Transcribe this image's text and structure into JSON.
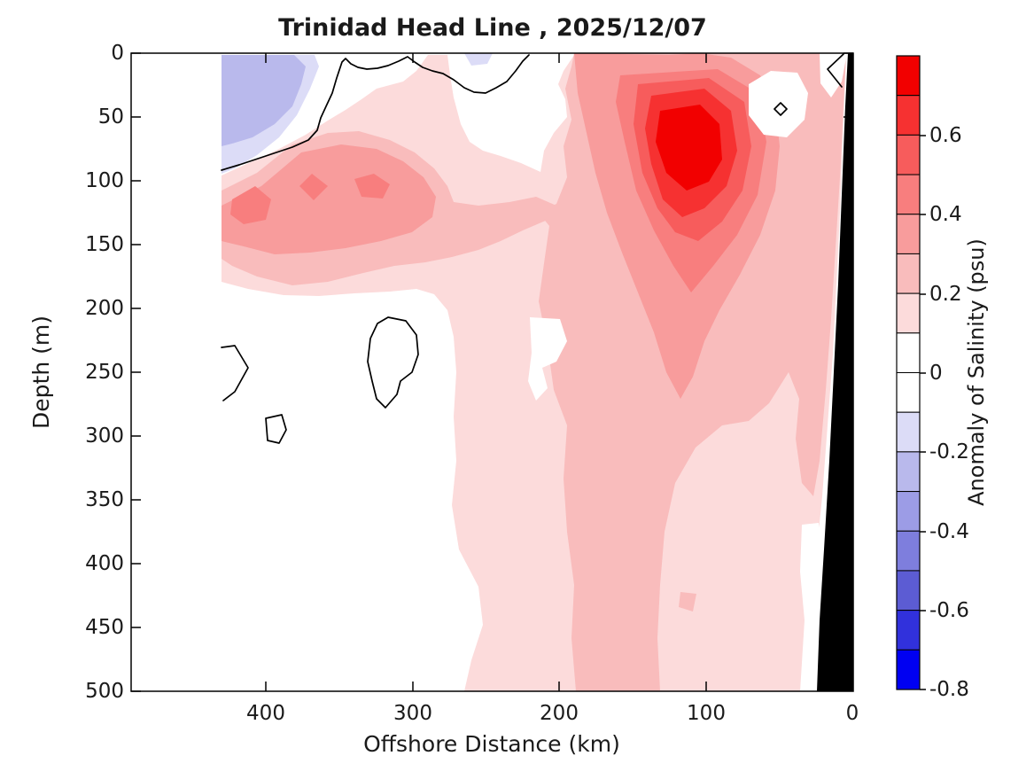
{
  "figure": {
    "title": "Trinidad Head Line , 2025/12/07",
    "xlabel": "Offshore Distance (km)",
    "ylabel": "Depth (m)",
    "colorbar_label": "Anomaly of Salinity (psu)"
  },
  "chart_data": {
    "type": "filled-contour-section",
    "title": "Trinidad Head Line , 2025/12/07",
    "xlabel": "Offshore Distance (km)",
    "ylabel": "Depth (m)",
    "x_axis": {
      "ticks": [
        "400",
        "300",
        "200",
        "100",
        "0"
      ],
      "tick_values_km": [
        400,
        300,
        200,
        100,
        0
      ],
      "reversed": true,
      "range_km": [
        0,
        490
      ],
      "data_extent_km": [
        0,
        430
      ]
    },
    "y_axis": {
      "ticks": [
        "0",
        "50",
        "100",
        "150",
        "200",
        "250",
        "300",
        "350",
        "400",
        "450",
        "500"
      ],
      "tick_values_m": [
        0,
        50,
        100,
        150,
        200,
        250,
        300,
        350,
        400,
        450,
        500
      ],
      "reversed": true,
      "range_m": [
        0,
        500
      ]
    },
    "colorbar": {
      "label": "Anomaly of Salinity (psu)",
      "min_psu": -0.8,
      "max_psu": 0.8,
      "segment_step_psu": 0.1,
      "tick_labels": [
        "0.6",
        "0.4",
        "0.2",
        "0",
        "-0.2",
        "-0.4",
        "-0.6",
        "-0.8"
      ],
      "tick_values": [
        0.6,
        0.4,
        0.2,
        0,
        -0.2,
        -0.4,
        -0.6,
        -0.8
      ],
      "segment_colors_top_to_bottom": [
        "#f20000",
        "#f63131",
        "#f75c5c",
        "#f87e7e",
        "#f89c9c",
        "#f9bcbc",
        "#fcdbdb",
        "#ffffff",
        "#ffffff",
        "#dcdcf7",
        "#b9b9ec",
        "#9c9ce6",
        "#7e7edd",
        "#5c5cd3",
        "#3131dc",
        "#0000f2"
      ]
    },
    "levels": {
      "p2": "#fcdbdb",
      "p3": "#f9bcbc",
      "p4": "#f89c9c",
      "p5": "#f87e7e",
      "p6": "#f75c5c",
      "p7": "#f63131",
      "p8": "#f20000",
      "n2": "#dcdcf7",
      "n3": "#b9b9ec",
      "white": "#ffffff",
      "mask": "#000000"
    },
    "contour_levels_psu": [
      -0.8,
      -0.7,
      -0.6,
      -0.5,
      -0.4,
      -0.3,
      -0.2,
      -0.1,
      0,
      0.1,
      0.2,
      0.3,
      0.4,
      0.5,
      0.6,
      0.7,
      0.8
    ],
    "zero_contour": "drawn as black line",
    "features": [
      {
        "label": "negative (fresh) surface anomaly",
        "psu_range": [
          -0.3,
          -0.1
        ],
        "offshore_km": [
          370,
          430
        ],
        "depth_m": [
          0,
          95
        ]
      },
      {
        "label": "positive subsurface salty band",
        "psu_range": [
          0.3,
          0.5
        ],
        "offshore_km": [
          270,
          430
        ],
        "depth_m": [
          75,
          170
        ]
      },
      {
        "label": "main positive salty core",
        "psu_range": [
          0.7,
          0.8
        ],
        "offshore_km": [
          85,
          135
        ],
        "depth_m": [
          40,
          105
        ]
      },
      {
        "label": "broad weak positive anomaly",
        "psu_range": [
          0.1,
          0.3
        ],
        "offshore_km": [
          0,
          270
        ],
        "depth_m": [
          0,
          500
        ]
      },
      {
        "label": "near-zero region with closed 0-contours",
        "psu_range": [
          -0.1,
          0.1
        ],
        "offshore_km": [
          280,
          430
        ],
        "depth_m": [
          180,
          500
        ]
      },
      {
        "label": "seafloor / coast mask (black wedge)",
        "color": "#000000",
        "offshore_km": [
          0,
          25
        ],
        "depth_m": [
          0,
          500
        ]
      }
    ]
  }
}
